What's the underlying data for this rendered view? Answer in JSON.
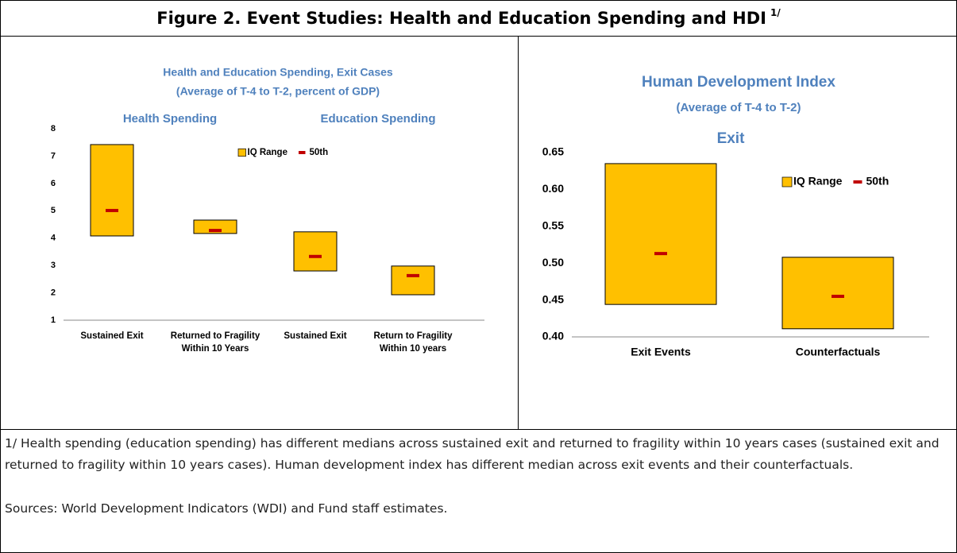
{
  "header": {
    "title": "Figure 2. Event Studies: Health and Education Spending and HDI",
    "note_mark": "1/"
  },
  "chart_data": [
    {
      "type": "range",
      "title": [
        "Health and Education Spending, Exit Cases",
        "(Average of T-4 to T-2, percent of GDP)"
      ],
      "annotations": [
        "Health Spending",
        "Education Spending"
      ],
      "categories": [
        [
          "Sustained Exit"
        ],
        [
          "Returned to Fragility",
          "Within 10 Years"
        ],
        [
          "Sustained Exit"
        ],
        [
          "Return to Fragility",
          "Within 10 years"
        ]
      ],
      "series": [
        {
          "name": "IQ Range",
          "color": "#ffc000",
          "low": [
            4.08,
            4.17,
            2.8,
            1.93
          ],
          "high": [
            7.42,
            4.66,
            4.23,
            2.98
          ]
        },
        {
          "name": "50th",
          "color": "#c00000",
          "values": [
            5.01,
            4.28,
            3.33,
            2.63
          ]
        }
      ],
      "ylim": [
        1,
        8
      ],
      "yticks": [
        1,
        2,
        3,
        4,
        5,
        6,
        7,
        8
      ],
      "legend": "top"
    },
    {
      "type": "range",
      "title": [
        "Human Development Index",
        "(Average of T-4 to T-2)"
      ],
      "annotations": [
        "Exit"
      ],
      "categories": [
        [
          "Exit Events"
        ],
        [
          "Counterfactuals"
        ]
      ],
      "series": [
        {
          "name": "IQ Range",
          "color": "#ffc000",
          "low": [
            0.444,
            0.411
          ],
          "high": [
            0.635,
            0.508
          ]
        },
        {
          "name": "50th",
          "color": "#c00000",
          "values": [
            0.513,
            0.455
          ]
        }
      ],
      "ylim": [
        0.4,
        0.65
      ],
      "yticks": [
        {
          "value": 0.4,
          "label": "0.40"
        },
        {
          "value": 0.45,
          "label": "0.45"
        },
        {
          "value": 0.5,
          "label": "0.50"
        },
        {
          "value": 0.55,
          "label": "0.55"
        },
        {
          "value": 0.6,
          "label": "0.60"
        },
        {
          "value": 0.65,
          "label": "0.65"
        }
      ],
      "legend": "top right"
    }
  ],
  "notes": [
    "1/ Health spending (education spending) has different medians across sustained exit and returned to fragility within 10 years cases (sustained exit and returned to fragility within 10 years cases). Human development index has different median across exit events and their counterfactuals.",
    "Sources: World Development Indicators (WDI) and Fund staff estimates."
  ]
}
